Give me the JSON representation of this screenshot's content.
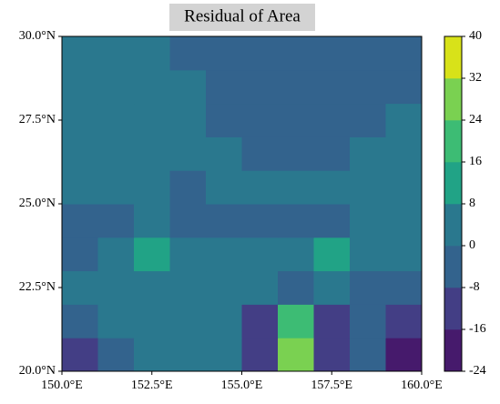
{
  "chart_data": {
    "type": "contour",
    "title": "Residual of Area",
    "x": [
      150.5,
      151.5,
      152.5,
      153.5,
      154.5,
      155.5,
      156.5,
      157.5,
      158.5,
      159.5
    ],
    "y": [
      20.5,
      21.5,
      22.5,
      23.5,
      24.5,
      25.5,
      26.5,
      27.5,
      28.5,
      29.5
    ],
    "z": [
      [
        -12,
        -4,
        2,
        2,
        3,
        -10,
        30,
        -10,
        -4,
        -20
      ],
      [
        -6,
        2,
        3,
        3,
        2,
        -12,
        20,
        -12,
        -4,
        -12
      ],
      [
        2,
        3,
        3,
        3,
        4,
        2,
        -4,
        2,
        -4,
        -8
      ],
      [
        -2,
        2,
        10,
        2,
        3,
        3,
        2,
        10,
        2,
        3
      ],
      [
        -2,
        -2,
        2,
        -2,
        -2,
        -2,
        -2,
        -2,
        3,
        3
      ],
      [
        3,
        3,
        3,
        -2,
        3,
        3,
        3,
        3,
        3,
        3
      ],
      [
        3,
        3,
        3,
        3,
        3,
        -2,
        -2,
        -2,
        3,
        3
      ],
      [
        3,
        3,
        3,
        3,
        -2,
        -2,
        -2,
        -2,
        -2,
        3
      ],
      [
        3,
        3,
        3,
        3,
        -2,
        -2,
        -2,
        -2,
        -2,
        -2
      ],
      [
        3,
        3,
        3,
        -2,
        -2,
        -2,
        -2,
        -2,
        -2,
        -2
      ]
    ],
    "xlim": [
      150,
      160
    ],
    "ylim": [
      20,
      30
    ],
    "xticks": [
      {
        "value": 150,
        "label": "150.0°E"
      },
      {
        "value": 152.5,
        "label": "152.5°E"
      },
      {
        "value": 155,
        "label": "155.0°E"
      },
      {
        "value": 157.5,
        "label": "157.5°E"
      },
      {
        "value": 160,
        "label": "160.0°E"
      }
    ],
    "yticks": [
      {
        "value": 20,
        "label": "20.0°N"
      },
      {
        "value": 22.5,
        "label": "22.5°N"
      },
      {
        "value": 25,
        "label": "25.0°N"
      },
      {
        "value": 27.5,
        "label": "27.5°N"
      },
      {
        "value": 30,
        "label": "30.0°N"
      }
    ],
    "levels": [
      -24,
      -16,
      -8,
      0,
      8,
      16,
      24,
      32,
      40
    ],
    "colors": [
      "#461a6c",
      "#433e85",
      "#33638d",
      "#2a788e",
      "#21a386",
      "#3dbc74",
      "#7ad151",
      "#d8e219"
    ]
  }
}
